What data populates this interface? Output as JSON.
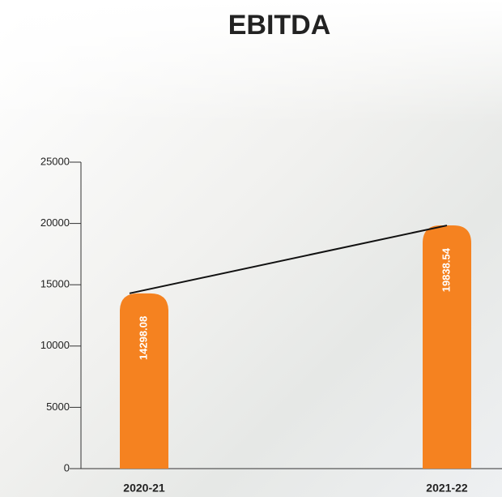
{
  "chart_data": {
    "type": "bar",
    "title": "EBITDA",
    "categories": [
      "2020-21",
      "2021-22"
    ],
    "values": [
      14298.08,
      19838.54
    ],
    "color": "#f58220",
    "ylim": [
      0,
      25000
    ],
    "yticks": [
      0,
      5000,
      10000,
      15000,
      20000,
      25000
    ]
  }
}
